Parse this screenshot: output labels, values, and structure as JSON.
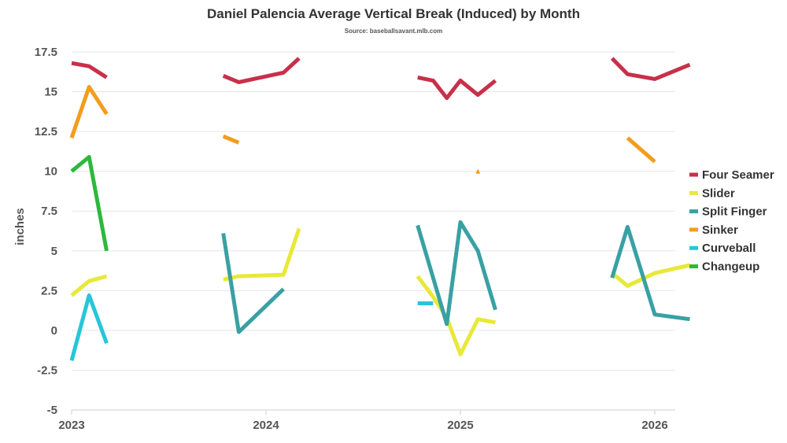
{
  "chart_data": {
    "type": "line",
    "title": "Daniel Palencia Average Vertical Break (Induced) by Month",
    "subtitle": "Source: baseballsavant.mlb.com",
    "xlabel": "",
    "ylabel": "inches",
    "x_ticks": [
      "2023",
      "2024",
      "2025",
      "2026"
    ],
    "y_ticks": [
      "17.5",
      "15",
      "12.5",
      "10",
      "7.5",
      "5",
      "2.5",
      "0",
      "-2.5",
      "-5"
    ],
    "ylim": [
      -5,
      17.5
    ],
    "xlim": [
      2023.0,
      2026.2
    ],
    "grid": true,
    "legend_position": "right",
    "series": [
      {
        "name": "Four Seamer",
        "color": "#c8304a",
        "segments": [
          [
            [
              2023.0,
              16.8
            ],
            [
              2023.09,
              16.6
            ],
            [
              2023.18,
              15.9
            ]
          ],
          [
            [
              2023.78,
              16.0
            ],
            [
              2023.86,
              15.6
            ],
            [
              2024.09,
              16.2
            ],
            [
              2024.17,
              17.1
            ]
          ],
          [
            [
              2024.78,
              15.9
            ],
            [
              2024.86,
              15.7
            ],
            [
              2024.93,
              14.6
            ],
            [
              2025.0,
              15.7
            ],
            [
              2025.09,
              14.8
            ],
            [
              2025.18,
              15.7
            ]
          ],
          [
            [
              2025.78,
              17.1
            ],
            [
              2025.86,
              16.1
            ],
            [
              2026.0,
              15.8
            ],
            [
              2026.18,
              16.7
            ]
          ]
        ]
      },
      {
        "name": "Slider",
        "color": "#e8e83a",
        "segments": [
          [
            [
              2023.0,
              2.2
            ],
            [
              2023.09,
              3.1
            ],
            [
              2023.18,
              3.4
            ]
          ],
          [
            [
              2023.78,
              3.2
            ],
            [
              2023.86,
              3.4
            ],
            [
              2024.09,
              3.5
            ],
            [
              2024.17,
              6.4
            ]
          ],
          [
            [
              2024.78,
              3.4
            ],
            [
              2024.86,
              2.1
            ],
            [
              2024.93,
              0.8
            ],
            [
              2025.0,
              -1.5
            ],
            [
              2025.09,
              0.7
            ],
            [
              2025.18,
              0.5
            ]
          ],
          [
            [
              2025.78,
              3.6
            ],
            [
              2025.86,
              2.8
            ],
            [
              2026.0,
              3.6
            ],
            [
              2026.18,
              4.1
            ]
          ]
        ]
      },
      {
        "name": "Split Finger",
        "color": "#3aa0a3",
        "segments": [
          [
            [
              2023.78,
              6.1
            ],
            [
              2023.86,
              -0.1
            ],
            [
              2024.09,
              2.6
            ]
          ],
          [
            [
              2024.78,
              6.6
            ],
            [
              2024.93,
              0.4
            ],
            [
              2025.0,
              6.8
            ],
            [
              2025.09,
              5.0
            ],
            [
              2025.18,
              1.3
            ]
          ],
          [
            [
              2025.78,
              3.3
            ],
            [
              2025.86,
              6.5
            ],
            [
              2026.0,
              1.0
            ],
            [
              2026.18,
              0.7
            ]
          ]
        ]
      },
      {
        "name": "Sinker",
        "color": "#f39c1e",
        "segments": [
          [
            [
              2023.0,
              12.1
            ],
            [
              2023.09,
              15.3
            ],
            [
              2023.18,
              13.6
            ]
          ],
          [
            [
              2023.78,
              12.2
            ],
            [
              2023.86,
              11.8
            ]
          ],
          [
            [
              2025.09,
              10.0
            ]
          ],
          [
            [
              2025.86,
              12.1
            ],
            [
              2026.0,
              10.6
            ]
          ]
        ]
      },
      {
        "name": "Curveball",
        "color": "#26c6da",
        "segments": [
          [
            [
              2023.0,
              -1.9
            ],
            [
              2023.09,
              2.2
            ],
            [
              2023.18,
              -0.8
            ]
          ],
          [
            [
              2024.78,
              1.7
            ],
            [
              2024.86,
              1.7
            ]
          ]
        ]
      },
      {
        "name": "Changeup",
        "color": "#2db83d",
        "segments": [
          [
            [
              2023.0,
              10.0
            ],
            [
              2023.09,
              10.9
            ],
            [
              2023.18,
              5.0
            ]
          ]
        ]
      }
    ]
  }
}
